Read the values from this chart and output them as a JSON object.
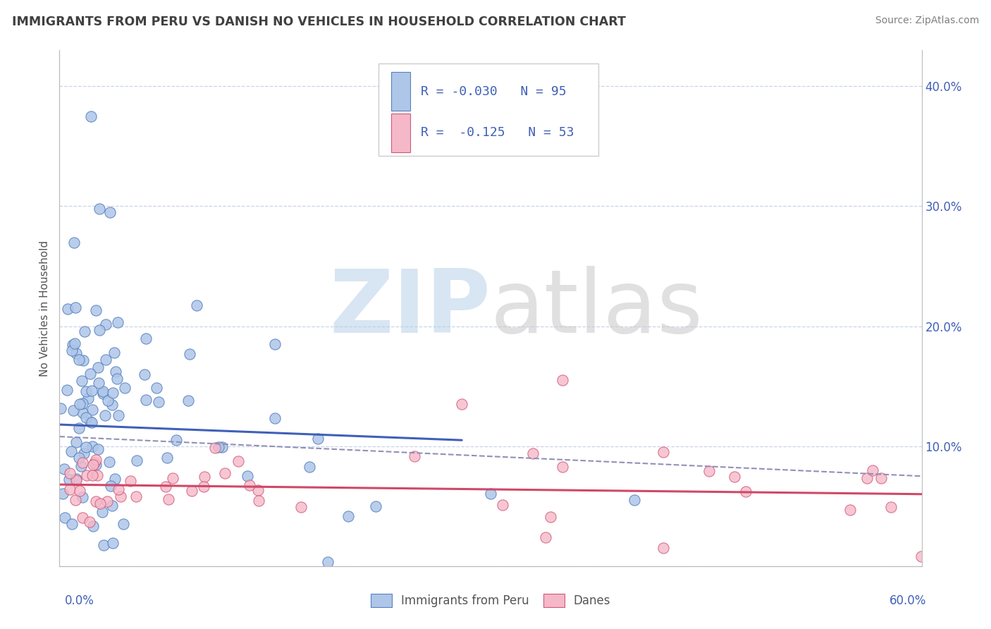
{
  "title": "IMMIGRANTS FROM PERU VS DANISH NO VEHICLES IN HOUSEHOLD CORRELATION CHART",
  "source": "Source: ZipAtlas.com",
  "ylabel": "No Vehicles in Household",
  "legend_blue_label": "Immigrants from Peru",
  "legend_pink_label": "Danes",
  "blue_fill": "#aec6e8",
  "blue_edge": "#5580c0",
  "pink_fill": "#f5b8c8",
  "pink_edge": "#d05878",
  "blue_line_color": "#4060b8",
  "pink_line_color": "#d04868",
  "dashed_line_color": "#9090b8",
  "title_color": "#404040",
  "axis_label_color": "#4060b8",
  "source_color": "#808080",
  "background_color": "#ffffff",
  "grid_color": "#c8d4e8",
  "xlim": [
    0.0,
    0.6
  ],
  "ylim": [
    0.0,
    0.43
  ],
  "ytick_vals": [
    0.0,
    0.1,
    0.2,
    0.3,
    0.4
  ],
  "right_yticklabels": [
    "",
    "10.0%",
    "20.0%",
    "30.0%",
    "40.0%"
  ],
  "blue_trend_x": [
    0.0,
    0.28
  ],
  "blue_trend_y": [
    0.118,
    0.105
  ],
  "pink_trend_x": [
    0.0,
    0.6
  ],
  "pink_trend_y": [
    0.068,
    0.06
  ],
  "dashed_trend_x": [
    0.0,
    0.6
  ],
  "dashed_trend_y": [
    0.108,
    0.075
  ],
  "legend_r1": "R = -0.030",
  "legend_n1": "N = 95",
  "legend_r2": "R =  -0.125",
  "legend_n2": "N = 53"
}
